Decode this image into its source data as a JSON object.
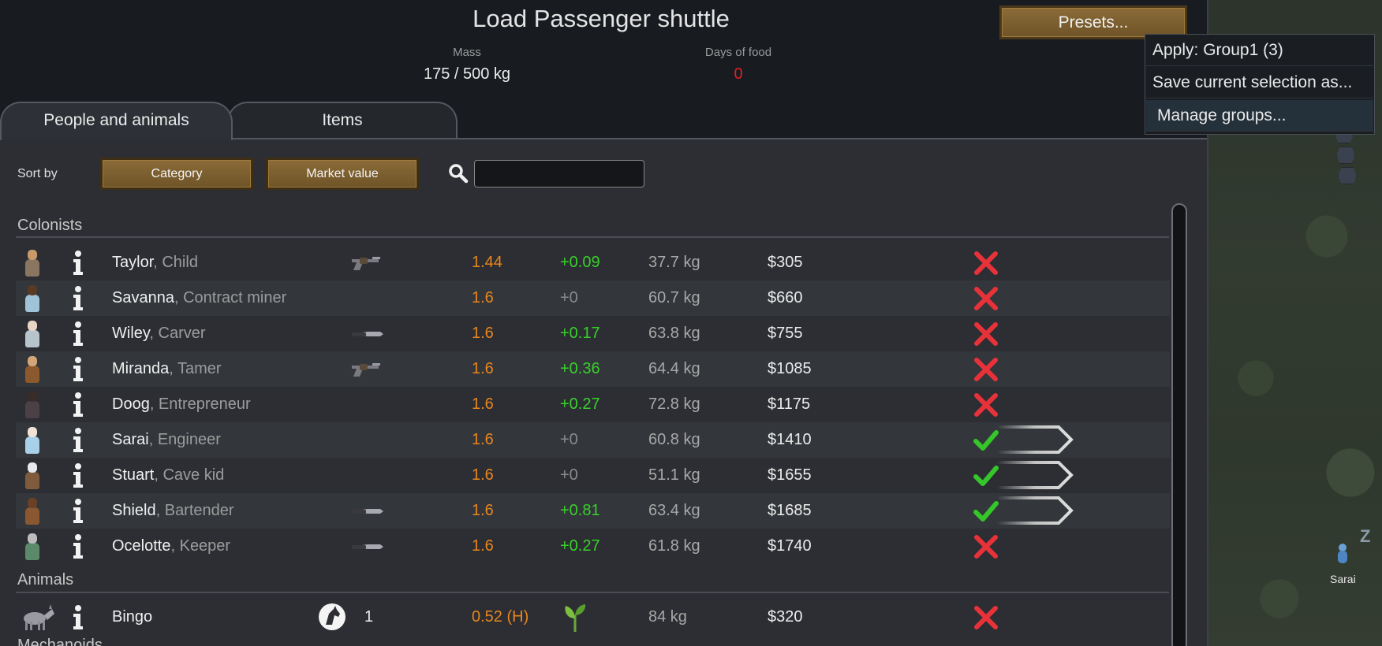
{
  "dialog": {
    "title": "Load Passenger shuttle",
    "mass_label": "Mass",
    "mass_value": "175 / 500 kg",
    "food_label": "Days of food",
    "food_value": "0",
    "presets_label": "Presets..."
  },
  "presets_menu": {
    "items": [
      "Apply: Group1 (3)",
      "Save current selection as...",
      "Manage groups..."
    ]
  },
  "tabs": [
    {
      "label": "People and animals",
      "active": true
    },
    {
      "label": "Items",
      "active": false
    }
  ],
  "sort": {
    "label": "Sort by",
    "primary": "Category",
    "secondary": "Market value"
  },
  "search": {
    "value": "",
    "placeholder": ""
  },
  "sections": {
    "colonists": "Colonists",
    "animals": "Animals",
    "next": "Mechanoids"
  },
  "colonists": [
    {
      "name": "Taylor",
      "role": "Child",
      "weapon": "revolver-icon",
      "v1": "1.44",
      "v2": "+0.09",
      "mass": "37.7 kg",
      "price": "$305",
      "selected": false,
      "skin": "#c89a6a",
      "cloth": "#8a7660"
    },
    {
      "name": "Savanna",
      "role": "Contract miner",
      "weapon": "",
      "v1": "1.6",
      "v2": "+0",
      "mass": "60.7 kg",
      "price": "$660",
      "selected": false,
      "skin": "#5b3a24",
      "cloth": "#9fc3d8"
    },
    {
      "name": "Wiley",
      "role": "Carver",
      "weapon": "knife-icon",
      "v1": "1.6",
      "v2": "+0.17",
      "mass": "63.8 kg",
      "price": "$755",
      "selected": false,
      "skin": "#e7d6c6",
      "cloth": "#b8c4cc"
    },
    {
      "name": "Miranda",
      "role": "Tamer",
      "weapon": "revolver-icon",
      "v1": "1.6",
      "v2": "+0.36",
      "mass": "64.4 kg",
      "price": "$1085",
      "selected": false,
      "skin": "#d3a57a",
      "cloth": "#8a5a2e"
    },
    {
      "name": "Doog",
      "role": "Entrepreneur",
      "weapon": "",
      "v1": "1.6",
      "v2": "+0.27",
      "mass": "72.8 kg",
      "price": "$1175",
      "selected": false,
      "skin": "#3a2c26",
      "cloth": "#4a4046"
    },
    {
      "name": "Sarai",
      "role": "Engineer",
      "weapon": "",
      "v1": "1.6",
      "v2": "+0",
      "mass": "60.8 kg",
      "price": "$1410",
      "selected": true,
      "skin": "#f0e2d4",
      "cloth": "#a8d0e8"
    },
    {
      "name": "Stuart",
      "role": "Cave kid",
      "weapon": "",
      "v1": "1.6",
      "v2": "+0",
      "mass": "51.1 kg",
      "price": "$1655",
      "selected": true,
      "skin": "#e8e8ee",
      "cloth": "#7f5a3c"
    },
    {
      "name": "Shield",
      "role": "Bartender",
      "weapon": "knife-icon",
      "v1": "1.6",
      "v2": "+0.81",
      "mass": "63.4 kg",
      "price": "$1685",
      "selected": true,
      "skin": "#6a4026",
      "cloth": "#8a5830"
    },
    {
      "name": "Ocelotte",
      "role": "Keeper",
      "weapon": "knife-icon",
      "v1": "1.6",
      "v2": "+0.27",
      "mass": "61.8 kg",
      "price": "$1740",
      "selected": false,
      "skin": "#bcbcbc",
      "cloth": "#5a8a6a"
    }
  ],
  "animals": [
    {
      "name": "Bingo",
      "count": "1",
      "v1": "0.52 (H)",
      "mass": "84 kg",
      "price": "$320",
      "selected": false
    }
  ],
  "map": {
    "pawn_label": "Sarai",
    "z_label": "Z"
  },
  "colors": {
    "accent_orange": "#e8861e",
    "positive_green": "#38d12a",
    "reject_red": "#e8323a",
    "accept_green": "#35c62a",
    "button_brown": "#7d6030"
  }
}
